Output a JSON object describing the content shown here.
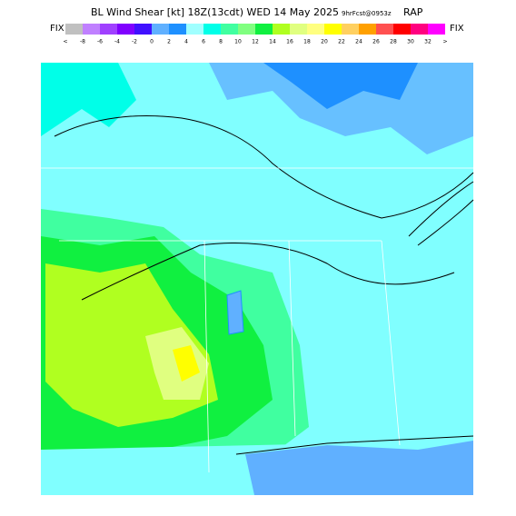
{
  "header": {
    "title": "BL Wind Shear [kt] 18Z(13cdt) WED 14 May 2025",
    "forecast": "9hrFcst@0953z",
    "model": "RAP"
  },
  "legend": {
    "left_label": "FIX",
    "right_label": "FIX",
    "labels": [
      "<",
      "-8",
      "-6",
      "-4",
      "-2",
      "0",
      "2",
      "4",
      "6",
      "8",
      "10",
      "12",
      "14",
      "16",
      "18",
      "20",
      "22",
      "24",
      "26",
      "28",
      "30",
      "32",
      ">"
    ],
    "colors": [
      "#c0c0c0",
      "#c080ff",
      "#a040ff",
      "#8000ff",
      "#4010ff",
      "#60b0ff",
      "#1e90ff",
      "#a0ffff",
      "#00ffe8",
      "#40ffa0",
      "#80ff80",
      "#10f040",
      "#b0ff20",
      "#e0ff80",
      "#ffff80",
      "#ffff00",
      "#ffd060",
      "#ffa000",
      "#ff5050",
      "#ff0000",
      "#ff0080",
      "#ff00ff"
    ]
  }
}
